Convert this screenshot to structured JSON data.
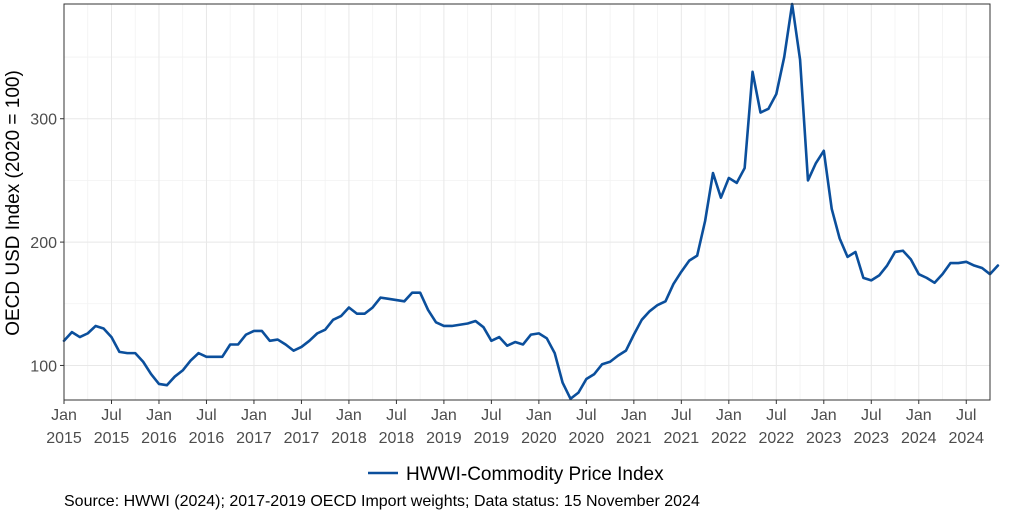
{
  "chart_data": {
    "type": "line",
    "title": "",
    "xlabel": "",
    "ylabel": "OECD USD Index (2020 = 100)",
    "ylim": [
      72,
      393
    ],
    "y_ticks": [
      100,
      200,
      300
    ],
    "grid": true,
    "legend_position": "bottom",
    "source": "Source: HWWI (2024); 2017-2019 OECD Import weights; Data status: 15 November 2024",
    "x_tick_labels": [
      {
        "month": "Jan",
        "year": "2015"
      },
      {
        "month": "Jul",
        "year": "2015"
      },
      {
        "month": "Jan",
        "year": "2016"
      },
      {
        "month": "Jul",
        "year": "2016"
      },
      {
        "month": "Jan",
        "year": "2017"
      },
      {
        "month": "Jul",
        "year": "2017"
      },
      {
        "month": "Jan",
        "year": "2018"
      },
      {
        "month": "Jul",
        "year": "2018"
      },
      {
        "month": "Jan",
        "year": "2019"
      },
      {
        "month": "Jul",
        "year": "2019"
      },
      {
        "month": "Jan",
        "year": "2020"
      },
      {
        "month": "Jul",
        "year": "2020"
      },
      {
        "month": "Jan",
        "year": "2021"
      },
      {
        "month": "Jul",
        "year": "2021"
      },
      {
        "month": "Jan",
        "year": "2022"
      },
      {
        "month": "Jul",
        "year": "2022"
      },
      {
        "month": "Jan",
        "year": "2023"
      },
      {
        "month": "Jul",
        "year": "2023"
      },
      {
        "month": "Jan",
        "year": "2024"
      },
      {
        "month": "Jul",
        "year": "2024"
      }
    ],
    "x_start": "2015-01",
    "x_end": "2024-10",
    "series": [
      {
        "name": "HWWI-Commodity Price Index",
        "color": "#0b4f9c",
        "values": [
          120,
          127,
          123,
          126,
          132,
          130,
          123,
          111,
          110,
          110,
          103,
          93,
          85,
          84,
          91,
          96,
          104,
          110,
          107,
          107,
          107,
          117,
          117,
          125,
          128,
          128,
          120,
          121,
          117,
          112,
          115,
          120,
          126,
          129,
          137,
          140,
          147,
          142,
          142,
          147,
          155,
          154,
          153,
          152,
          159,
          159,
          145,
          135,
          132,
          132,
          133,
          134,
          136,
          131,
          120,
          123,
          116,
          119,
          117,
          125,
          126,
          122,
          110,
          86,
          73,
          78,
          89,
          93,
          101,
          103,
          108,
          112,
          125,
          137,
          144,
          149,
          152,
          166,
          176,
          185,
          189,
          217,
          256,
          236,
          252,
          248,
          260,
          338,
          305,
          308,
          320,
          350,
          393,
          348,
          250,
          264,
          274,
          227,
          203,
          188,
          192,
          171,
          169,
          173,
          181,
          192,
          193,
          186,
          174,
          171,
          167,
          174,
          183,
          183,
          184,
          181,
          179,
          174,
          181
        ]
      }
    ]
  }
}
